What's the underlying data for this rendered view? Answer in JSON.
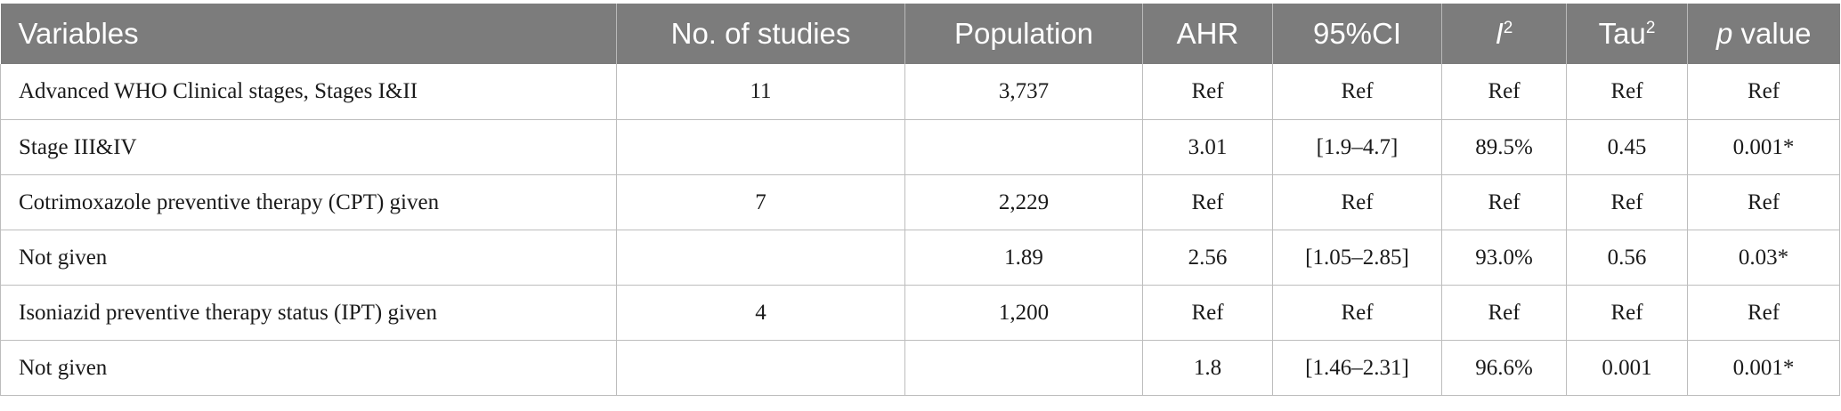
{
  "table": {
    "headers": {
      "variables": "Variables",
      "studies": "No. of studies",
      "population": "Population",
      "ahr": "AHR",
      "ci": "95%CI",
      "i2_base": "I",
      "i2_sup": "2",
      "tau_base": "Tau",
      "tau_sup": "2",
      "p_italic": "p",
      "p_rest": " value"
    },
    "rows": [
      {
        "variable": "Advanced WHO Clinical stages, Stages I&II",
        "studies": "11",
        "population": "3,737",
        "ahr": "Ref",
        "ci": "Ref",
        "i2": "Ref",
        "tau2": "Ref",
        "p": "Ref"
      },
      {
        "variable": "Stage III&IV",
        "studies": "",
        "population": "",
        "ahr": "3.01",
        "ci": "[1.9–4.7]",
        "i2": "89.5%",
        "tau2": "0.45",
        "p": "0.001*"
      },
      {
        "variable": "Cotrimoxazole preventive therapy (CPT) given",
        "studies": "7",
        "population": "2,229",
        "ahr": "Ref",
        "ci": "Ref",
        "i2": "Ref",
        "tau2": "Ref",
        "p": "Ref"
      },
      {
        "variable": "Not given",
        "studies": "",
        "population": "1.89",
        "ahr": "2.56",
        "ci": "[1.05–2.85]",
        "i2": "93.0%",
        "tau2": "0.56",
        "p": "0.03*"
      },
      {
        "variable": "Isoniazid preventive therapy status (IPT) given",
        "studies": "4",
        "population": "1,200",
        "ahr": "Ref",
        "ci": "Ref",
        "i2": "Ref",
        "tau2": "Ref",
        "p": "Ref"
      },
      {
        "variable": "Not given",
        "studies": "",
        "population": "",
        "ahr": "1.8",
        "ci": "[1.46–2.31]",
        "i2": "96.6%",
        "tau2": "0.001",
        "p": "0.001*"
      }
    ]
  }
}
